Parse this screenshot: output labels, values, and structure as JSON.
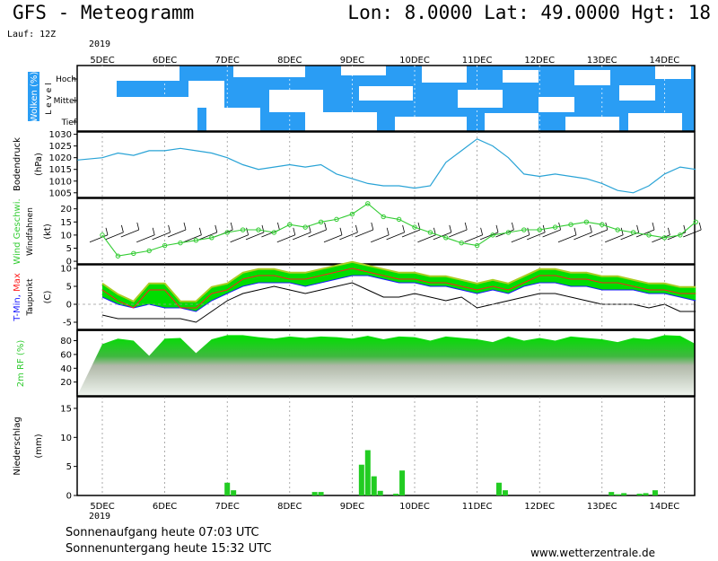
{
  "header": {
    "title": "GFS - Meteogramm",
    "coords": "Lon: 8.0000  Lat: 49.0000  Hgt: 18",
    "run": "Lauf: 12Z",
    "year": "2019"
  },
  "footer": {
    "sunrise": "Sonnenaufgang heute 07:03 UTC",
    "sunset": "Sonnenuntergang heute 15:32 UTC",
    "website": "www.wetterzentrale.de"
  },
  "colors": {
    "cloud": "#2a9df4",
    "pressure": "#29a3d6",
    "wind": "#33cc33",
    "tmin": "#1a1aff",
    "tmax": "#ff2020",
    "dew": "#000000",
    "fill_green": "#00dd00",
    "fill_yellow": "#aacc22",
    "precip": "#22cc22"
  },
  "chart_data": [
    {
      "type": "heatmap",
      "panel": "clouds",
      "ylabel": "Wolken (%)",
      "level_label": "L e v e l",
      "rows": [
        "Hoch",
        "Mittel",
        "Tief"
      ],
      "x": [
        "5DEC",
        "6DEC",
        "7DEC",
        "8DEC",
        "9DEC",
        "10DEC",
        "11DEC",
        "12DEC",
        "13DEC",
        "14DEC"
      ]
    },
    {
      "type": "line",
      "panel": "pressure",
      "ylabel": "Bodendruck",
      "unit": "(hPa)",
      "yticks": [
        1005,
        1010,
        1015,
        1020,
        1025,
        1030
      ],
      "ylim": [
        1003,
        1031
      ],
      "x_days": [
        0,
        0.25,
        0.5,
        0.75,
        1,
        1.25,
        1.5,
        1.75,
        2,
        2.25,
        2.5,
        2.75,
        3,
        3.25,
        3.5,
        3.75,
        4,
        4.25,
        4.5,
        4.75,
        5,
        5.25,
        5.5,
        5.75,
        6,
        6.25,
        6.5,
        6.75,
        7,
        7.25,
        7.5,
        7.75,
        8,
        8.25,
        8.5,
        8.75,
        9,
        9.25,
        9.5
      ],
      "values": [
        1020,
        1022,
        1021,
        1023,
        1023,
        1024,
        1023,
        1022,
        1020,
        1017,
        1015,
        1016,
        1017,
        1016,
        1017,
        1013,
        1011,
        1009,
        1008,
        1008,
        1007,
        1008,
        1018,
        1023,
        1028,
        1025,
        1020,
        1013,
        1012,
        1013,
        1012,
        1011,
        1009,
        1006,
        1005,
        1008,
        1013,
        1016,
        1015
      ]
    },
    {
      "type": "line",
      "panel": "wind",
      "ylabel": "Wind Geschwi.",
      "sublabel": "Windfahnen",
      "unit": "(kt)",
      "yticks": [
        0,
        5,
        10,
        15,
        20
      ],
      "ylim": [
        -1,
        24
      ],
      "x_days": [
        0,
        0.25,
        0.5,
        0.75,
        1,
        1.25,
        1.5,
        1.75,
        2,
        2.25,
        2.5,
        2.75,
        3,
        3.25,
        3.5,
        3.75,
        4,
        4.25,
        4.5,
        4.75,
        5,
        5.25,
        5.5,
        5.75,
        6,
        6.25,
        6.5,
        6.75,
        7,
        7.25,
        7.5,
        7.75,
        8,
        8.25,
        8.5,
        8.75,
        9,
        9.25,
        9.5
      ],
      "values": [
        10,
        2,
        3,
        4,
        6,
        7,
        8,
        9,
        11,
        12,
        12,
        11,
        14,
        13,
        15,
        16,
        18,
        22,
        17,
        16,
        13,
        11,
        9,
        7,
        6,
        10,
        11,
        12,
        12,
        13,
        14,
        15,
        14,
        12,
        11,
        10,
        9,
        10,
        15
      ]
    },
    {
      "type": "line",
      "panel": "temperature",
      "ylabel": "T-Min, Max",
      "sublabel": "Taupunkt",
      "unit": "(C)",
      "yticks": [
        -5,
        0,
        5,
        10
      ],
      "ylim": [
        -7,
        11
      ],
      "x_days": [
        0,
        0.25,
        0.5,
        0.75,
        1,
        1.25,
        1.5,
        1.75,
        2,
        2.25,
        2.5,
        2.75,
        3,
        3.25,
        3.5,
        3.75,
        4,
        4.25,
        4.5,
        4.75,
        5,
        5.25,
        5.5,
        5.75,
        6,
        6.25,
        6.5,
        6.75,
        7,
        7.25,
        7.5,
        7.75,
        8,
        8.25,
        8.5,
        8.75,
        9,
        9.25,
        9.5
      ],
      "series": [
        {
          "name": "T-Min",
          "values": [
            2,
            0,
            -1,
            0,
            -1,
            -1,
            -2,
            1,
            3,
            5,
            6,
            6,
            6,
            5,
            6,
            7,
            8,
            8,
            7,
            6,
            6,
            5,
            5,
            4,
            3,
            4,
            3,
            5,
            6,
            6,
            5,
            5,
            4,
            4,
            4,
            3,
            3,
            2,
            1
          ]
        },
        {
          "name": "Max",
          "values": [
            4,
            1,
            -1,
            4,
            4,
            -1,
            -1,
            3,
            4,
            7,
            8,
            8,
            7,
            7,
            8,
            9,
            10,
            9,
            8,
            7,
            7,
            6,
            6,
            5,
            4,
            5,
            4,
            6,
            8,
            8,
            7,
            7,
            6,
            6,
            5,
            4,
            4,
            3,
            3
          ]
        },
        {
          "name": "Taupunkt",
          "values": [
            -3,
            -4,
            -4,
            -4,
            -4,
            -4,
            -5,
            -2,
            1,
            3,
            4,
            5,
            4,
            3,
            4,
            5,
            6,
            4,
            2,
            2,
            3,
            2,
            1,
            2,
            -1,
            0,
            1,
            2,
            3,
            3,
            2,
            1,
            0,
            0,
            0,
            -1,
            0,
            -2,
            -2
          ]
        }
      ]
    },
    {
      "type": "area",
      "panel": "humidity",
      "ylabel": "2m RF (%)",
      "yticks": [
        20,
        40,
        60,
        80
      ],
      "ylim": [
        0,
        95
      ],
      "x_days": [
        0,
        0.25,
        0.5,
        0.75,
        1,
        1.25,
        1.5,
        1.75,
        2,
        2.25,
        2.5,
        2.75,
        3,
        3.25,
        3.5,
        3.75,
        4,
        4.25,
        4.5,
        4.75,
        5,
        5.25,
        5.5,
        5.75,
        6,
        6.25,
        6.5,
        6.75,
        7,
        7.25,
        7.5,
        7.75,
        8,
        8.25,
        8.5,
        8.75,
        9,
        9.25,
        9.5
      ],
      "values": [
        75,
        83,
        80,
        58,
        83,
        84,
        62,
        82,
        88,
        88,
        85,
        83,
        86,
        84,
        86,
        85,
        83,
        87,
        82,
        86,
        85,
        80,
        86,
        84,
        82,
        78,
        86,
        80,
        84,
        80,
        86,
        84,
        82,
        78,
        84,
        82,
        88,
        87,
        75
      ]
    },
    {
      "type": "bar",
      "panel": "precipitation",
      "ylabel": "Niederschlag",
      "unit": "(mm)",
      "yticks": [
        0,
        5,
        10,
        15
      ],
      "ylim": [
        0,
        17
      ],
      "x_days": [
        2,
        2.1,
        3.4,
        3.5,
        4.15,
        4.25,
        4.35,
        4.45,
        4.7,
        4.8,
        6.35,
        6.45,
        8.15,
        8.25,
        8.35,
        8.6,
        8.7,
        8.85
      ],
      "values": [
        2.2,
        0.9,
        0.6,
        0.6,
        5.3,
        7.8,
        3.3,
        0.8,
        0.3,
        4.3,
        2.2,
        0.9,
        0.6,
        0.2,
        0.4,
        0.3,
        0.4,
        0.9
      ]
    }
  ],
  "xaxis": {
    "days": [
      "5DEC",
      "6DEC",
      "7DEC",
      "8DEC",
      "9DEC",
      "10DEC",
      "11DEC",
      "12DEC",
      "13DEC",
      "14DEC"
    ]
  }
}
